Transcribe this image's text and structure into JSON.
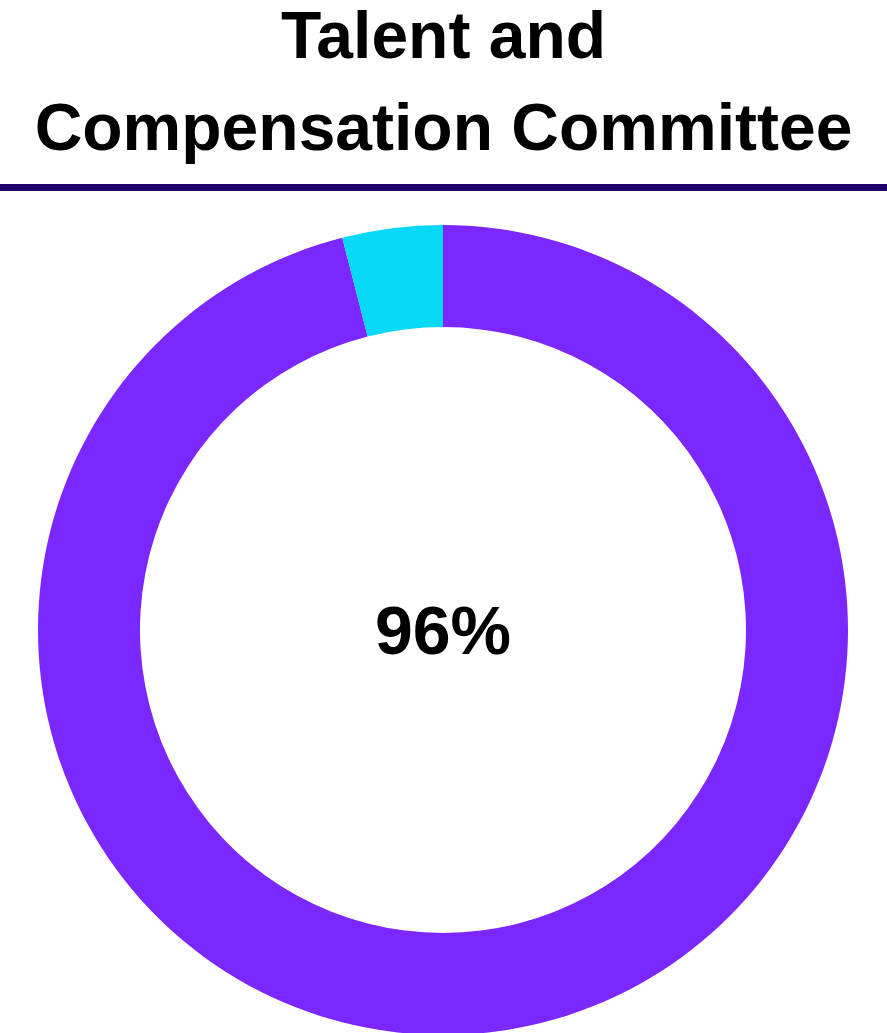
{
  "chart_data": {
    "type": "donut",
    "title": "Talent and\nCompensation Committee",
    "categories": [
      null,
      null
    ],
    "values": [
      96,
      4
    ],
    "colors": [
      "#7b27ff",
      "#05d9f5"
    ],
    "value_labels": [
      "96%",
      null
    ]
  }
}
